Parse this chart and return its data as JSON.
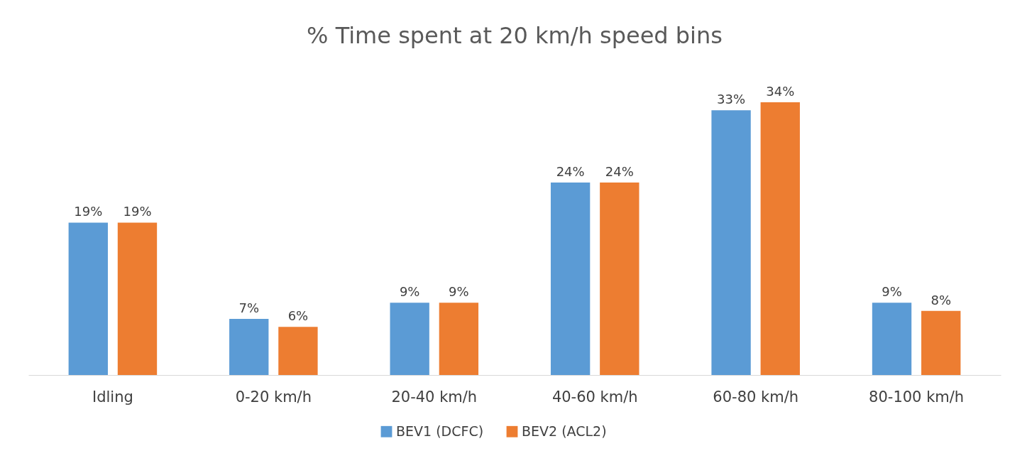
{
  "chart_data": {
    "type": "bar",
    "title": "% Time spent at 20 km/h speed bins",
    "categories": [
      "Idling",
      "0-20 km/h",
      "20-40 km/h",
      "40-60 km/h",
      "60-80 km/h",
      "80-100 km/h"
    ],
    "series": [
      {
        "name": "BEV1 (DCFC)",
        "color": "#5b9bd5",
        "values": [
          19,
          7,
          9,
          24,
          33,
          9
        ],
        "value_labels": [
          "19%",
          "7%",
          "9%",
          "24%",
          "33%",
          "9%"
        ]
      },
      {
        "name": "BEV2 (ACL2)",
        "color": "#ed7d31",
        "values": [
          19,
          6,
          9,
          24,
          34,
          8
        ],
        "value_labels": [
          "19%",
          "6%",
          "9%",
          "24%",
          "34%",
          "8%"
        ]
      }
    ],
    "legend": "bottom",
    "grid": false,
    "tick_labels": "x"
  }
}
